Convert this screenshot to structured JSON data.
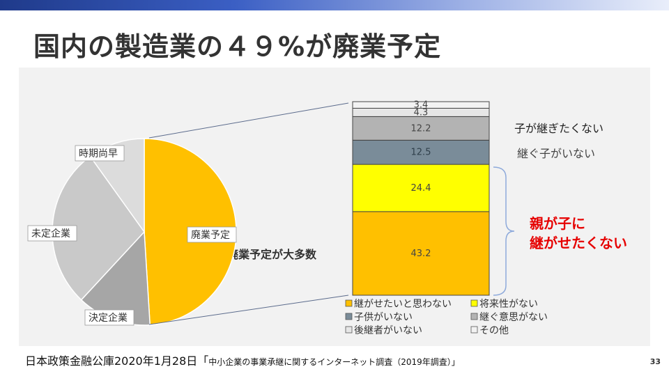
{
  "slide": {
    "title": "国内の製造業の４９%が廃業予定",
    "source_main": "日本政策金融公庫2020年1月28日「",
    "source_sub": "中小企業の事業承継に関するインターネット調査（2019年調査）」",
    "page_number": "33"
  },
  "annotations": {
    "pie_center_label": "廃業予定が大多数",
    "reason_no_wish": "子が継ぎたくない",
    "reason_no_successor": "継ぐ子がいない",
    "reason_parent_line1": "親が子に",
    "reason_parent_line2": "継がせたくない"
  },
  "colors": {
    "pie_haigyo": "#ffc000",
    "pie_kettei": "#a6a6a6",
    "pie_mitei": "#c9c9c9",
    "pie_jiki": "#dcdcdc",
    "bar_tsugasetai": "#ffc000",
    "bar_shorai": "#ffff00",
    "bar_kodomo": "#7a8c99",
    "bar_ishi": "#b3b3b3",
    "bar_koukei": "#e6e6e6",
    "bar_sonota": "#f2f2f2",
    "accent_red": "#e60000"
  },
  "chart_data": [
    {
      "type": "pie",
      "title": "",
      "slices": [
        {
          "label": "廃業予定",
          "value": 49
        },
        {
          "label": "決定企業",
          "value": 13
        },
        {
          "label": "未定企業",
          "value": 28
        },
        {
          "label": "時期尚早",
          "value": 10
        }
      ]
    },
    {
      "type": "bar",
      "stacked": true,
      "title": "",
      "series": [
        {
          "name": "継がせたいと思わない",
          "value": 43.2
        },
        {
          "name": "将来性がない",
          "value": 24.4
        },
        {
          "name": "子供がいない",
          "value": 12.5
        },
        {
          "name": "継ぐ意思がない",
          "value": 12.2
        },
        {
          "name": "後継者がいない",
          "value": 4.3
        },
        {
          "name": "その他",
          "value": 3.4
        }
      ],
      "legend": "bottom",
      "legend_entries": [
        "継がせたいと思わない",
        "将来性がない",
        "子供がいない",
        "継ぐ意思がない",
        "後継者がいない",
        "その他"
      ]
    }
  ]
}
